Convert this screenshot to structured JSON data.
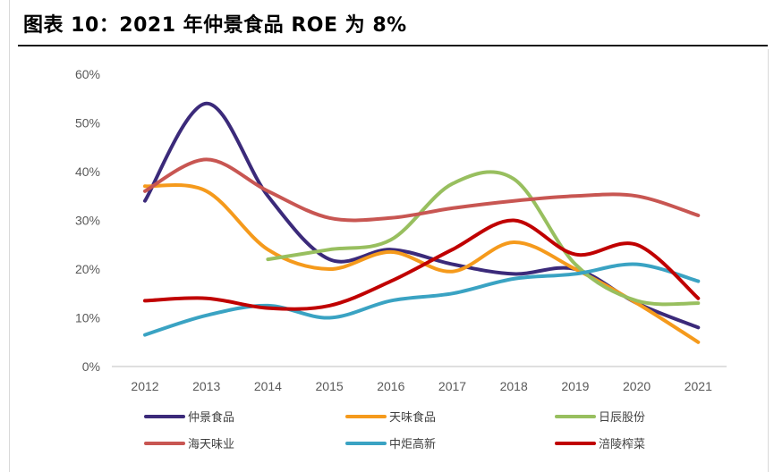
{
  "title": "图表 10：2021 年仲景食品 ROE 为 8%",
  "chart_data": {
    "type": "line",
    "title": "图表 10：2021 年仲景食品 ROE 为 8%",
    "xlabel": "",
    "ylabel": "",
    "categories": [
      "2012",
      "2013",
      "2014",
      "2015",
      "2016",
      "2017",
      "2018",
      "2019",
      "2020",
      "2021"
    ],
    "y_ticks": [
      "60%",
      "50%",
      "40%",
      "30%",
      "20%",
      "10%",
      "0%"
    ],
    "ylim": [
      0,
      60
    ],
    "grid": false,
    "legend_position": "bottom",
    "series": [
      {
        "name": "仲景食品",
        "color": "#3b2a7a",
        "values": [
          34,
          54,
          35,
          22,
          24,
          21,
          19,
          20,
          13,
          8
        ]
      },
      {
        "name": "天味食品",
        "color": "#f59a1c",
        "values": [
          37,
          36,
          24,
          20,
          23.5,
          19.5,
          25.5,
          20,
          13,
          5
        ]
      },
      {
        "name": "日辰股份",
        "color": "#98bf5f",
        "values": [
          null,
          null,
          22,
          24,
          26,
          37.5,
          38.5,
          21,
          13.5,
          13
        ]
      },
      {
        "name": "海天味业",
        "color": "#c85652",
        "values": [
          36,
          42.5,
          36,
          30.5,
          30.5,
          32.5,
          34,
          35,
          35,
          31
        ]
      },
      {
        "name": "中炬高新",
        "color": "#3aa3c3",
        "values": [
          6.5,
          10.5,
          12.5,
          10,
          13.5,
          15,
          18,
          19,
          21,
          17.5
        ]
      },
      {
        "name": "涪陵榨菜",
        "color": "#c00000",
        "values": [
          13.5,
          14,
          12,
          12.5,
          17.5,
          24,
          30,
          23,
          25,
          14
        ]
      }
    ]
  }
}
